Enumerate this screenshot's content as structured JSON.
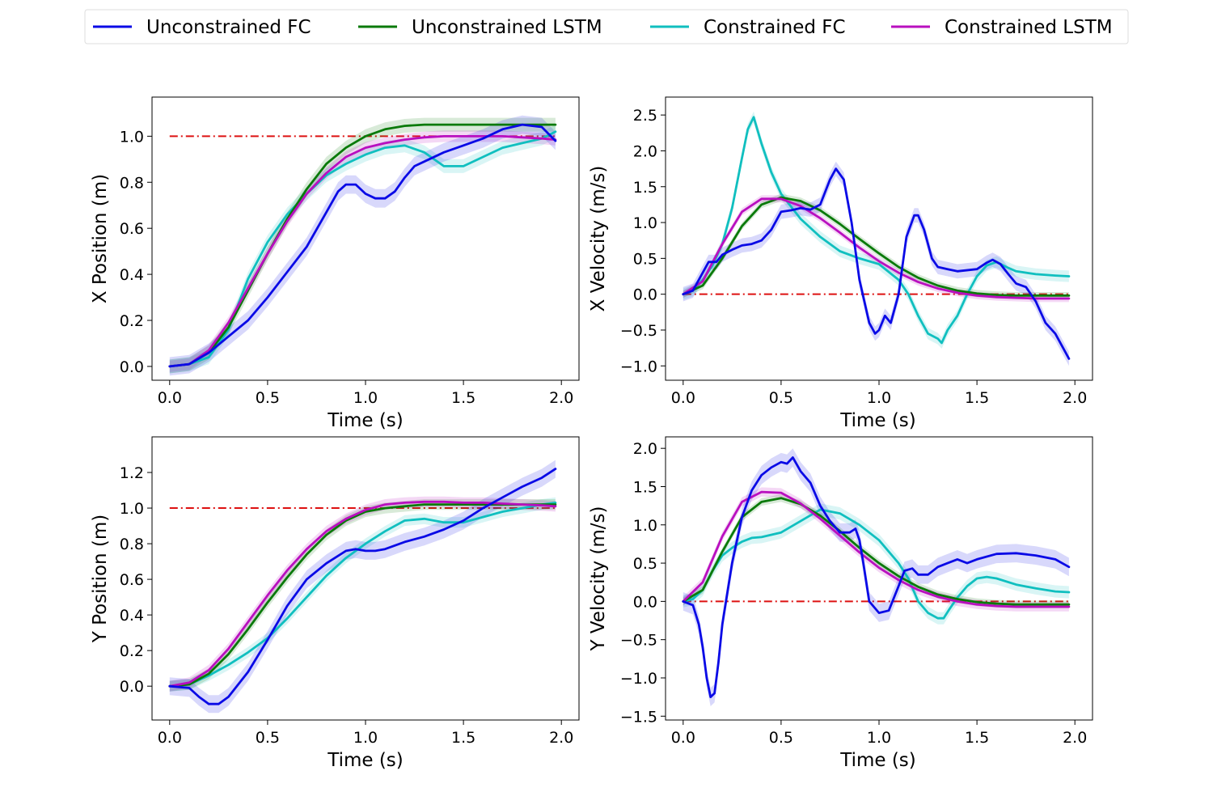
{
  "figure": {
    "colors": {
      "unconstrained_fc": "#0a0ae6",
      "unconstrained_lstm": "#0a7a0a",
      "constrained_fc": "#10bfbf",
      "constrained_lstm": "#b90fbf",
      "reference": "#dd1111"
    },
    "legend": {
      "placement": "top-center",
      "entries": [
        {
          "key": "unconstrained_fc",
          "label": "Unconstrained FC"
        },
        {
          "key": "unconstrained_lstm",
          "label": "Unconstrained LSTM"
        },
        {
          "key": "constrained_fc",
          "label": "Constrained FC"
        },
        {
          "key": "constrained_lstm",
          "label": "Constrained LSTM"
        }
      ]
    }
  },
  "chart_data": [
    {
      "type": "line",
      "xlabel": "Time (s)",
      "ylabel": "X Position (m)",
      "xlim": [
        -0.09,
        2.09
      ],
      "ylim": [
        -0.06,
        1.17
      ],
      "xticks": [
        "0.0",
        "0.5",
        "1.0",
        "1.5",
        "2.0"
      ],
      "yticks": [
        "0.0",
        "0.2",
        "0.4",
        "0.6",
        "0.8",
        "1.0"
      ],
      "reference": 1.0,
      "series": [
        {
          "key": "constrained_fc",
          "band": 0.03,
          "x": [
            0,
            0.1,
            0.2,
            0.3,
            0.4,
            0.5,
            0.6,
            0.7,
            0.8,
            0.9,
            1.0,
            1.1,
            1.2,
            1.3,
            1.4,
            1.5,
            1.6,
            1.7,
            1.8,
            1.9,
            1.97
          ],
          "y": [
            0,
            0.01,
            0.04,
            0.16,
            0.38,
            0.54,
            0.66,
            0.75,
            0.83,
            0.88,
            0.92,
            0.95,
            0.96,
            0.93,
            0.87,
            0.87,
            0.91,
            0.95,
            0.97,
            0.99,
            1.02
          ]
        },
        {
          "key": "unconstrained_lstm",
          "band": 0.03,
          "x": [
            0,
            0.1,
            0.2,
            0.3,
            0.4,
            0.5,
            0.6,
            0.7,
            0.8,
            0.9,
            1.0,
            1.1,
            1.2,
            1.3,
            1.4,
            1.5,
            1.6,
            1.7,
            1.8,
            1.9,
            1.97
          ],
          "y": [
            0,
            0.01,
            0.06,
            0.17,
            0.33,
            0.49,
            0.64,
            0.77,
            0.88,
            0.95,
            1.0,
            1.03,
            1.045,
            1.05,
            1.05,
            1.05,
            1.05,
            1.05,
            1.05,
            1.05,
            1.05
          ]
        },
        {
          "key": "constrained_lstm",
          "band": 0.025,
          "x": [
            0,
            0.1,
            0.2,
            0.3,
            0.4,
            0.5,
            0.6,
            0.7,
            0.8,
            0.9,
            1.0,
            1.1,
            1.2,
            1.3,
            1.4,
            1.5,
            1.6,
            1.7,
            1.8,
            1.9,
            1.97
          ],
          "y": [
            0,
            0.01,
            0.07,
            0.19,
            0.34,
            0.49,
            0.63,
            0.75,
            0.84,
            0.91,
            0.95,
            0.97,
            0.985,
            0.995,
            1.0,
            1.0,
            1.0,
            1.0,
            0.995,
            0.99,
            0.985
          ]
        },
        {
          "key": "unconstrained_fc",
          "band": 0.04,
          "x": [
            0,
            0.1,
            0.2,
            0.3,
            0.4,
            0.5,
            0.6,
            0.7,
            0.8,
            0.86,
            0.9,
            0.95,
            1.0,
            1.05,
            1.1,
            1.15,
            1.2,
            1.25,
            1.3,
            1.4,
            1.5,
            1.6,
            1.7,
            1.8,
            1.9,
            1.97
          ],
          "y": [
            0,
            0.01,
            0.06,
            0.13,
            0.2,
            0.3,
            0.41,
            0.52,
            0.67,
            0.76,
            0.79,
            0.79,
            0.75,
            0.73,
            0.73,
            0.76,
            0.82,
            0.87,
            0.89,
            0.93,
            0.96,
            0.99,
            1.03,
            1.05,
            1.04,
            0.98
          ]
        }
      ]
    },
    {
      "type": "line",
      "xlabel": "Time (s)",
      "ylabel": "X Velocity (m/s)",
      "xlim": [
        -0.09,
        2.09
      ],
      "ylim": [
        -1.2,
        2.75
      ],
      "xticks": [
        "0.0",
        "0.5",
        "1.0",
        "1.5",
        "2.0"
      ],
      "yticks": [
        "−1.0",
        "−0.5",
        "0.0",
        "0.5",
        "1.0",
        "1.5",
        "2.0",
        "2.5"
      ],
      "reference": 0.0,
      "series": [
        {
          "key": "constrained_fc",
          "band": 0.08,
          "x": [
            0,
            0.05,
            0.1,
            0.15,
            0.2,
            0.25,
            0.3,
            0.33,
            0.36,
            0.4,
            0.45,
            0.5,
            0.6,
            0.7,
            0.8,
            0.9,
            1.0,
            1.1,
            1.15,
            1.2,
            1.25,
            1.3,
            1.32,
            1.35,
            1.4,
            1.45,
            1.5,
            1.55,
            1.6,
            1.65,
            1.7,
            1.8,
            1.9,
            1.97
          ],
          "y": [
            0,
            0.05,
            0.2,
            0.4,
            0.7,
            1.2,
            1.9,
            2.3,
            2.47,
            2.1,
            1.7,
            1.4,
            1.05,
            0.8,
            0.6,
            0.5,
            0.42,
            0.2,
            0.0,
            -0.3,
            -0.55,
            -0.62,
            -0.68,
            -0.5,
            -0.3,
            0.0,
            0.25,
            0.4,
            0.45,
            0.38,
            0.32,
            0.28,
            0.26,
            0.25
          ]
        },
        {
          "key": "unconstrained_lstm",
          "band": 0.05,
          "x": [
            0,
            0.1,
            0.2,
            0.3,
            0.4,
            0.5,
            0.6,
            0.7,
            0.8,
            0.9,
            1.0,
            1.1,
            1.2,
            1.3,
            1.4,
            1.5,
            1.6,
            1.7,
            1.8,
            1.9,
            1.97
          ],
          "y": [
            0,
            0.12,
            0.5,
            0.95,
            1.25,
            1.35,
            1.3,
            1.17,
            0.98,
            0.77,
            0.57,
            0.38,
            0.23,
            0.12,
            0.05,
            0.01,
            -0.01,
            -0.02,
            -0.02,
            -0.02,
            -0.02
          ]
        },
        {
          "key": "constrained_lstm",
          "band": 0.05,
          "x": [
            0,
            0.1,
            0.2,
            0.3,
            0.4,
            0.5,
            0.6,
            0.7,
            0.8,
            0.9,
            1.0,
            1.1,
            1.2,
            1.3,
            1.4,
            1.5,
            1.6,
            1.7,
            1.8,
            1.9,
            1.97
          ],
          "y": [
            0,
            0.18,
            0.7,
            1.15,
            1.33,
            1.33,
            1.23,
            1.06,
            0.86,
            0.65,
            0.46,
            0.3,
            0.17,
            0.08,
            0.02,
            -0.02,
            -0.04,
            -0.05,
            -0.06,
            -0.06,
            -0.06
          ]
        },
        {
          "key": "unconstrained_fc",
          "band": 0.1,
          "x": [
            0,
            0.05,
            0.1,
            0.13,
            0.17,
            0.2,
            0.25,
            0.3,
            0.35,
            0.4,
            0.45,
            0.5,
            0.55,
            0.6,
            0.65,
            0.7,
            0.75,
            0.78,
            0.82,
            0.86,
            0.9,
            0.95,
            0.98,
            1.0,
            1.03,
            1.06,
            1.1,
            1.14,
            1.18,
            1.2,
            1.23,
            1.27,
            1.3,
            1.35,
            1.4,
            1.5,
            1.55,
            1.58,
            1.62,
            1.66,
            1.7,
            1.75,
            1.8,
            1.85,
            1.9,
            1.97
          ],
          "y": [
            0,
            0.05,
            0.3,
            0.45,
            0.45,
            0.55,
            0.62,
            0.68,
            0.7,
            0.75,
            0.9,
            1.15,
            1.17,
            1.2,
            1.18,
            1.25,
            1.6,
            1.75,
            1.6,
            1.0,
            0.2,
            -0.4,
            -0.55,
            -0.5,
            -0.3,
            -0.4,
            0.0,
            0.8,
            1.1,
            1.1,
            0.9,
            0.5,
            0.38,
            0.35,
            0.32,
            0.35,
            0.44,
            0.48,
            0.42,
            0.28,
            0.15,
            0.1,
            -0.1,
            -0.4,
            -0.55,
            -0.9
          ]
        }
      ]
    },
    {
      "type": "line",
      "xlabel": "Time (s)",
      "ylabel": "Y Position (m)",
      "xlim": [
        -0.09,
        2.09
      ],
      "ylim": [
        -0.19,
        1.4
      ],
      "xticks": [
        "0.0",
        "0.5",
        "1.0",
        "1.5",
        "2.0"
      ],
      "yticks": [
        "0.0",
        "0.2",
        "0.4",
        "0.6",
        "0.8",
        "1.0",
        "1.2"
      ],
      "reference": 1.0,
      "series": [
        {
          "key": "constrained_fc",
          "band": 0.03,
          "x": [
            0,
            0.1,
            0.2,
            0.3,
            0.4,
            0.5,
            0.6,
            0.7,
            0.8,
            0.9,
            1.0,
            1.1,
            1.2,
            1.3,
            1.4,
            1.5,
            1.6,
            1.7,
            1.8,
            1.9,
            1.97
          ],
          "y": [
            0,
            0.01,
            0.06,
            0.12,
            0.19,
            0.27,
            0.38,
            0.5,
            0.62,
            0.72,
            0.8,
            0.87,
            0.93,
            0.94,
            0.92,
            0.92,
            0.95,
            0.98,
            1.0,
            1.02,
            1.03
          ]
        },
        {
          "key": "unconstrained_lstm",
          "band": 0.03,
          "x": [
            0,
            0.1,
            0.2,
            0.3,
            0.4,
            0.5,
            0.6,
            0.7,
            0.8,
            0.9,
            1.0,
            1.1,
            1.2,
            1.3,
            1.4,
            1.5,
            1.6,
            1.7,
            1.8,
            1.9,
            1.97
          ],
          "y": [
            0,
            0.01,
            0.07,
            0.18,
            0.32,
            0.47,
            0.61,
            0.74,
            0.85,
            0.93,
            0.98,
            1.0,
            1.01,
            1.02,
            1.02,
            1.02,
            1.02,
            1.02,
            1.02,
            1.02,
            1.02
          ]
        },
        {
          "key": "constrained_lstm",
          "band": 0.03,
          "x": [
            0,
            0.1,
            0.2,
            0.3,
            0.4,
            0.5,
            0.6,
            0.7,
            0.8,
            0.9,
            1.0,
            1.1,
            1.2,
            1.3,
            1.4,
            1.5,
            1.6,
            1.7,
            1.8,
            1.9,
            1.97
          ],
          "y": [
            0,
            0.02,
            0.09,
            0.21,
            0.36,
            0.51,
            0.65,
            0.77,
            0.87,
            0.94,
            0.99,
            1.02,
            1.03,
            1.035,
            1.035,
            1.03,
            1.03,
            1.025,
            1.02,
            1.015,
            1.01
          ]
        },
        {
          "key": "unconstrained_fc",
          "band": 0.05,
          "x": [
            0,
            0.1,
            0.15,
            0.2,
            0.25,
            0.3,
            0.4,
            0.5,
            0.6,
            0.7,
            0.8,
            0.9,
            0.95,
            1.0,
            1.05,
            1.1,
            1.2,
            1.3,
            1.4,
            1.5,
            1.6,
            1.7,
            1.8,
            1.9,
            1.97
          ],
          "y": [
            0,
            -0.01,
            -0.06,
            -0.1,
            -0.1,
            -0.06,
            0.08,
            0.26,
            0.45,
            0.6,
            0.69,
            0.76,
            0.77,
            0.76,
            0.76,
            0.77,
            0.81,
            0.84,
            0.88,
            0.93,
            1.0,
            1.06,
            1.12,
            1.17,
            1.22
          ]
        }
      ]
    },
    {
      "type": "line",
      "xlabel": "Time (s)",
      "ylabel": "Y Velocity (m/s)",
      "xlim": [
        -0.09,
        2.09
      ],
      "ylim": [
        -1.55,
        2.15
      ],
      "xticks": [
        "0.0",
        "0.5",
        "1.0",
        "1.5",
        "2.0"
      ],
      "yticks": [
        "−1.5",
        "−1.0",
        "−0.5",
        "0.0",
        "0.5",
        "1.0",
        "1.5",
        "2.0"
      ],
      "reference": 0.0,
      "series": [
        {
          "key": "constrained_fc",
          "band": 0.08,
          "x": [
            0,
            0.05,
            0.1,
            0.15,
            0.2,
            0.25,
            0.3,
            0.35,
            0.4,
            0.5,
            0.6,
            0.7,
            0.8,
            0.9,
            1.0,
            1.1,
            1.15,
            1.2,
            1.25,
            1.3,
            1.33,
            1.36,
            1.4,
            1.45,
            1.5,
            1.55,
            1.6,
            1.7,
            1.8,
            1.9,
            1.97
          ],
          "y": [
            0,
            0.03,
            0.15,
            0.4,
            0.6,
            0.7,
            0.78,
            0.83,
            0.84,
            0.9,
            1.05,
            1.2,
            1.15,
            1.0,
            0.8,
            0.5,
            0.3,
            0.0,
            -0.15,
            -0.22,
            -0.22,
            -0.1,
            0.05,
            0.2,
            0.3,
            0.32,
            0.3,
            0.22,
            0.17,
            0.13,
            0.12
          ]
        },
        {
          "key": "unconstrained_lstm",
          "band": 0.05,
          "x": [
            0,
            0.1,
            0.2,
            0.3,
            0.4,
            0.5,
            0.6,
            0.7,
            0.8,
            0.9,
            1.0,
            1.1,
            1.2,
            1.3,
            1.4,
            1.5,
            1.6,
            1.7,
            1.8,
            1.9,
            1.97
          ],
          "y": [
            0,
            0.15,
            0.65,
            1.1,
            1.3,
            1.35,
            1.27,
            1.12,
            0.92,
            0.7,
            0.5,
            0.33,
            0.19,
            0.09,
            0.03,
            -0.01,
            -0.03,
            -0.04,
            -0.04,
            -0.04,
            -0.04
          ]
        },
        {
          "key": "constrained_lstm",
          "band": 0.06,
          "x": [
            0,
            0.1,
            0.2,
            0.3,
            0.4,
            0.5,
            0.6,
            0.7,
            0.8,
            0.9,
            1.0,
            1.1,
            1.2,
            1.3,
            1.4,
            1.5,
            1.6,
            1.7,
            1.8,
            1.9,
            1.97
          ],
          "y": [
            0,
            0.25,
            0.85,
            1.3,
            1.43,
            1.42,
            1.28,
            1.08,
            0.86,
            0.64,
            0.44,
            0.28,
            0.15,
            0.06,
            0.0,
            -0.04,
            -0.06,
            -0.07,
            -0.07,
            -0.07,
            -0.07
          ]
        },
        {
          "key": "unconstrained_fc",
          "band": 0.12,
          "x": [
            0,
            0.05,
            0.08,
            0.1,
            0.12,
            0.14,
            0.16,
            0.18,
            0.2,
            0.25,
            0.3,
            0.35,
            0.4,
            0.45,
            0.5,
            0.53,
            0.56,
            0.6,
            0.65,
            0.7,
            0.75,
            0.8,
            0.85,
            0.88,
            0.9,
            0.92,
            0.95,
            1.0,
            1.05,
            1.1,
            1.13,
            1.17,
            1.2,
            1.25,
            1.3,
            1.35,
            1.4,
            1.45,
            1.5,
            1.6,
            1.7,
            1.8,
            1.9,
            1.97
          ],
          "y": [
            0,
            -0.05,
            -0.3,
            -0.6,
            -1.0,
            -1.25,
            -1.2,
            -0.8,
            -0.3,
            0.5,
            1.1,
            1.45,
            1.65,
            1.75,
            1.82,
            1.8,
            1.88,
            1.7,
            1.55,
            1.25,
            1.05,
            0.9,
            0.9,
            0.95,
            0.8,
            0.5,
            0.0,
            -0.15,
            -0.12,
            0.2,
            0.4,
            0.43,
            0.35,
            0.35,
            0.45,
            0.5,
            0.55,
            0.5,
            0.55,
            0.62,
            0.63,
            0.6,
            0.55,
            0.45
          ]
        }
      ]
    }
  ]
}
